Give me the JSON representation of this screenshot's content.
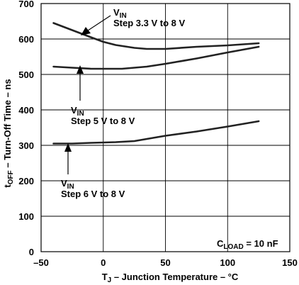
{
  "chart_data": {
    "type": "line",
    "xlabel_main": "T",
    "xlabel_sub": "J",
    "xlabel_rest": " – Junction Temperature – °C",
    "ylabel_main": "t",
    "ylabel_sub": "OFF",
    "ylabel_rest": " – Turn-Off Time – ns",
    "xlim": [
      -50,
      150
    ],
    "ylim": [
      0,
      700
    ],
    "x_ticks": [
      -50,
      0,
      50,
      100,
      150
    ],
    "y_ticks": [
      0,
      100,
      200,
      300,
      400,
      500,
      600,
      700
    ],
    "x_tick_labels": [
      "–50",
      "0",
      "50",
      "100",
      "150"
    ],
    "y_tick_labels": [
      "0",
      "100",
      "200",
      "300",
      "400",
      "500",
      "600",
      "700"
    ],
    "grid": true,
    "series": [
      {
        "name": "Step 3.3 V to 8 V",
        "x": [
          -40,
          -25,
          -10,
          0,
          10,
          25,
          35,
          50,
          75,
          100,
          125
        ],
        "y": [
          645,
          625,
          605,
          592,
          583,
          575,
          572,
          572,
          578,
          582,
          588
        ]
      },
      {
        "name": "Step 5 V to 8 V",
        "x": [
          -40,
          -25,
          -10,
          0,
          15,
          25,
          35,
          50,
          75,
          100,
          125
        ],
        "y": [
          522,
          519,
          516,
          516,
          516,
          519,
          522,
          530,
          545,
          562,
          578
        ]
      },
      {
        "name": "Step 6 V to 8 V",
        "x": [
          -40,
          -25,
          -10,
          0,
          10,
          25,
          35,
          50,
          75,
          100,
          125
        ],
        "y": [
          305,
          305,
          307,
          308,
          309,
          312,
          318,
          327,
          339,
          353,
          368
        ]
      }
    ],
    "annotations": [
      {
        "label_main": "V",
        "label_sub": "IN",
        "label_text": "Step 3.3 V to 8 V"
      },
      {
        "label_main": "V",
        "label_sub": "IN",
        "label_text": "Step 5 V to 8 V"
      },
      {
        "label_main": "V",
        "label_sub": "IN",
        "label_text": "Step 6 V to 8 V"
      }
    ],
    "condition": {
      "main": "C",
      "sub": "LOAD",
      "rest": " = 10 nF"
    }
  }
}
